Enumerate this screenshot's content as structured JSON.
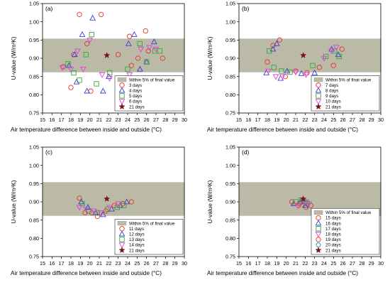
{
  "chart_data": [
    {
      "type": "scatter",
      "panel_label": "(a)",
      "xlabel": "Air temperature difference between inside and outside (°C)",
      "ylabel": "U-value (W/m²K)",
      "xlim": [
        15,
        30
      ],
      "ylim": [
        0.75,
        1.05
      ],
      "xticks": [
        15,
        16,
        17,
        18,
        19,
        20,
        21,
        22,
        23,
        24,
        25,
        26,
        27,
        28,
        29,
        30
      ],
      "yticks": [
        0.75,
        0.8,
        0.85,
        0.9,
        0.95,
        1.0,
        1.05
      ],
      "band": {
        "label": "Within 5% of final value",
        "y0": 0.8625,
        "y1": 0.953
      },
      "legend_position": "lower-right",
      "series": [
        {
          "name": "3 days",
          "marker": "circle",
          "color": "#e8332a",
          "points": [
            [
              17.2,
              0.877
            ],
            [
              18.0,
              0.82
            ],
            [
              18.9,
              1.02
            ],
            [
              19.7,
              0.94
            ],
            [
              20.1,
              0.81
            ],
            [
              21.2,
              1.02
            ],
            [
              23.1,
              0.81
            ],
            [
              24.2,
              0.96
            ],
            [
              24.4,
              0.88
            ],
            [
              25.1,
              0.9
            ],
            [
              25.9,
              0.975
            ],
            [
              26.2,
              0.92
            ],
            [
              27.7,
              0.9
            ],
            [
              23.0,
              0.91
            ],
            [
              18.3,
              0.91
            ]
          ]
        },
        {
          "name": "4 days",
          "marker": "triangle-up",
          "color": "#3b3bd6",
          "points": [
            [
              17.8,
              0.88
            ],
            [
              18.6,
              0.835
            ],
            [
              19.2,
              0.965
            ],
            [
              19.7,
              0.81
            ],
            [
              20.3,
              1.01
            ],
            [
              21.4,
              0.81
            ],
            [
              22.0,
              0.85
            ],
            [
              24.1,
              0.94
            ],
            [
              24.7,
              0.965
            ],
            [
              26.0,
              0.89
            ],
            [
              26.8,
              0.945
            ],
            [
              18.4,
              0.91
            ],
            [
              25.3,
              0.87
            ]
          ]
        },
        {
          "name": "5 days",
          "marker": "square",
          "color": "#33aa33",
          "points": [
            [
              17.7,
              0.885
            ],
            [
              18.3,
              0.86
            ],
            [
              18.9,
              0.84
            ],
            [
              19.6,
              0.91
            ],
            [
              20.2,
              0.965
            ],
            [
              20.7,
              0.83
            ],
            [
              22.1,
              0.86
            ],
            [
              24.0,
              0.87
            ],
            [
              25.3,
              0.94
            ],
            [
              26.0,
              0.89
            ],
            [
              26.9,
              0.92
            ],
            [
              27.4,
              0.92
            ]
          ]
        },
        {
          "name": "6 days",
          "marker": "triangle-down",
          "color": "#e040e0",
          "points": [
            [
              17.1,
              0.875
            ],
            [
              18.0,
              0.87
            ],
            [
              18.7,
              0.92
            ],
            [
              19.3,
              0.87
            ],
            [
              20.0,
              0.95
            ],
            [
              21.3,
              0.855
            ],
            [
              22.1,
              0.845
            ],
            [
              24.2,
              0.855
            ],
            [
              25.4,
              0.925
            ],
            [
              26.3,
              0.93
            ],
            [
              27.0,
              0.925
            ]
          ]
        },
        {
          "name": "21 days",
          "marker": "star",
          "color": "#7a1414",
          "points": [
            [
              21.8,
              0.908
            ]
          ]
        }
      ]
    },
    {
      "type": "scatter",
      "panel_label": "(b)",
      "xlabel": "Air temperature difference between inside and outside (°C)",
      "ylabel": "U-value (W/m²K)",
      "xlim": [
        15,
        30
      ],
      "ylim": [
        0.75,
        1.05
      ],
      "xticks": [
        15,
        16,
        17,
        18,
        19,
        20,
        21,
        22,
        23,
        24,
        25,
        26,
        27,
        28,
        29,
        30
      ],
      "yticks": [
        0.75,
        0.8,
        0.85,
        0.9,
        0.95,
        1.0,
        1.05
      ],
      "band": {
        "label": "Within 5% of final value",
        "y0": 0.8625,
        "y1": 0.953
      },
      "legend_position": "lower-right",
      "series": [
        {
          "name": "7 days",
          "marker": "circle",
          "color": "#e8332a",
          "points": [
            [
              18.0,
              0.89
            ],
            [
              18.6,
              0.935
            ],
            [
              19.3,
              0.95
            ],
            [
              19.9,
              0.85
            ],
            [
              21.0,
              0.865
            ],
            [
              22.2,
              0.86
            ],
            [
              23.5,
              0.875
            ],
            [
              25.0,
              0.88
            ],
            [
              25.9,
              0.925
            ]
          ]
        },
        {
          "name": "8 days",
          "marker": "triangle-up",
          "color": "#3b3bd6",
          "points": [
            [
              17.9,
              0.86
            ],
            [
              18.6,
              0.925
            ],
            [
              19.0,
              0.94
            ],
            [
              19.4,
              0.845
            ],
            [
              20.1,
              0.865
            ],
            [
              21.6,
              0.858
            ],
            [
              23.0,
              0.86
            ],
            [
              24.8,
              0.925
            ],
            [
              25.5,
              0.91
            ]
          ]
        },
        {
          "name": "9 days",
          "marker": "square",
          "color": "#33aa33",
          "points": [
            [
              18.2,
              0.92
            ],
            [
              18.7,
              0.875
            ],
            [
              19.5,
              0.865
            ],
            [
              20.4,
              0.862
            ],
            [
              22.8,
              0.88
            ],
            [
              24.2,
              0.905
            ],
            [
              25.1,
              0.92
            ],
            [
              25.6,
              0.905
            ]
          ]
        },
        {
          "name": "10 days",
          "marker": "triangle-down",
          "color": "#e040e0",
          "points": [
            [
              18.1,
              0.865
            ],
            [
              18.9,
              0.85
            ],
            [
              19.6,
              0.85
            ],
            [
              21.0,
              0.862
            ],
            [
              22.1,
              0.855
            ],
            [
              24.0,
              0.9
            ],
            [
              24.8,
              0.92
            ],
            [
              25.3,
              0.93
            ]
          ]
        },
        {
          "name": "21 days",
          "marker": "star",
          "color": "#7a1414",
          "points": [
            [
              21.8,
              0.908
            ]
          ]
        }
      ]
    },
    {
      "type": "scatter",
      "panel_label": "(c)",
      "xlabel": "Air temperature difference between inside and outside (°C)",
      "ylabel": "U-value (W/m²K)",
      "xlim": [
        15,
        30
      ],
      "ylim": [
        0.75,
        1.05
      ],
      "xticks": [
        15,
        16,
        17,
        18,
        19,
        20,
        21,
        22,
        23,
        24,
        25,
        26,
        27,
        28,
        29,
        30
      ],
      "yticks": [
        0.75,
        0.8,
        0.85,
        0.9,
        0.95,
        1.0,
        1.05
      ],
      "band": {
        "label": "Within 5% of final value",
        "y0": 0.8625,
        "y1": 0.953
      },
      "legend_position": "lower-right",
      "series": [
        {
          "name": "11 days",
          "marker": "circle",
          "color": "#e8332a",
          "points": [
            [
              18.9,
              0.91
            ],
            [
              19.5,
              0.87
            ],
            [
              20.2,
              0.87
            ],
            [
              20.8,
              0.86
            ],
            [
              21.7,
              0.875
            ],
            [
              22.6,
              0.89
            ],
            [
              23.5,
              0.895
            ],
            [
              24.4,
              0.9
            ]
          ]
        },
        {
          "name": "12 days",
          "marker": "triangle-up",
          "color": "#3b3bd6",
          "points": [
            [
              19.1,
              0.9
            ],
            [
              19.8,
              0.885
            ],
            [
              20.6,
              0.87
            ],
            [
              21.4,
              0.865
            ],
            [
              22.3,
              0.88
            ],
            [
              23.2,
              0.89
            ],
            [
              23.9,
              0.9
            ]
          ]
        },
        {
          "name": "13 days",
          "marker": "square",
          "color": "#33aa33",
          "points": [
            [
              19.2,
              0.895
            ],
            [
              19.9,
              0.875
            ],
            [
              20.8,
              0.87
            ],
            [
              21.9,
              0.88
            ],
            [
              22.9,
              0.885
            ],
            [
              23.6,
              0.89
            ]
          ]
        },
        {
          "name": "14 days",
          "marker": "triangle-down",
          "color": "#e040e0",
          "points": [
            [
              18.9,
              0.885
            ],
            [
              19.6,
              0.88
            ],
            [
              20.4,
              0.875
            ],
            [
              21.1,
              0.87
            ],
            [
              22.1,
              0.885
            ],
            [
              23.0,
              0.895
            ]
          ]
        },
        {
          "name": "21 days",
          "marker": "star",
          "color": "#7a1414",
          "points": [
            [
              21.8,
              0.908
            ]
          ]
        }
      ]
    },
    {
      "type": "scatter",
      "panel_label": "(d)",
      "xlabel": "Air temperature difference between inside and outside (°C)",
      "ylabel": "U-value (W/m²K)",
      "xlim": [
        15,
        30
      ],
      "ylim": [
        0.75,
        1.05
      ],
      "xticks": [
        15,
        16,
        17,
        18,
        19,
        20,
        21,
        22,
        23,
        24,
        25,
        26,
        27,
        28,
        29,
        30
      ],
      "yticks": [
        0.75,
        0.8,
        0.85,
        0.9,
        0.95,
        1.0,
        1.05
      ],
      "band": {
        "label": "Within 5% of final value",
        "y0": 0.8625,
        "y1": 0.953
      },
      "legend_position": "lower-right",
      "series": [
        {
          "name": "15 days",
          "marker": "circle",
          "color": "#e8332a",
          "points": [
            [
              20.6,
              0.9
            ],
            [
              21.3,
              0.89
            ],
            [
              22.1,
              0.885
            ],
            [
              22.6,
              0.89
            ]
          ]
        },
        {
          "name": "16 days",
          "marker": "triangle-up",
          "color": "#3b3bd6",
          "points": [
            [
              20.8,
              0.895
            ],
            [
              21.5,
              0.9
            ],
            [
              22.0,
              0.89
            ]
          ]
        },
        {
          "name": "17 days",
          "marker": "square",
          "color": "#33aa33",
          "points": [
            [
              21.0,
              0.9
            ],
            [
              21.6,
              0.905
            ],
            [
              22.2,
              0.895
            ]
          ]
        },
        {
          "name": "18 days",
          "marker": "triangle-down",
          "color": "#e040e0",
          "points": [
            [
              21.2,
              0.89
            ],
            [
              21.9,
              0.9
            ],
            [
              22.4,
              0.895
            ]
          ]
        },
        {
          "name": "19 days",
          "marker": "circle",
          "color": "#e8332a",
          "points": [
            [
              21.4,
              0.895
            ],
            [
              22.0,
              0.9
            ]
          ]
        },
        {
          "name": "20 days",
          "marker": "hexagon",
          "color": "#2a9a9a",
          "points": [
            [
              21.7,
              0.905
            ],
            [
              22.2,
              0.9
            ]
          ]
        },
        {
          "name": "21 days",
          "marker": "star",
          "color": "#7a1414",
          "points": [
            [
              21.8,
              0.908
            ]
          ]
        }
      ]
    }
  ]
}
